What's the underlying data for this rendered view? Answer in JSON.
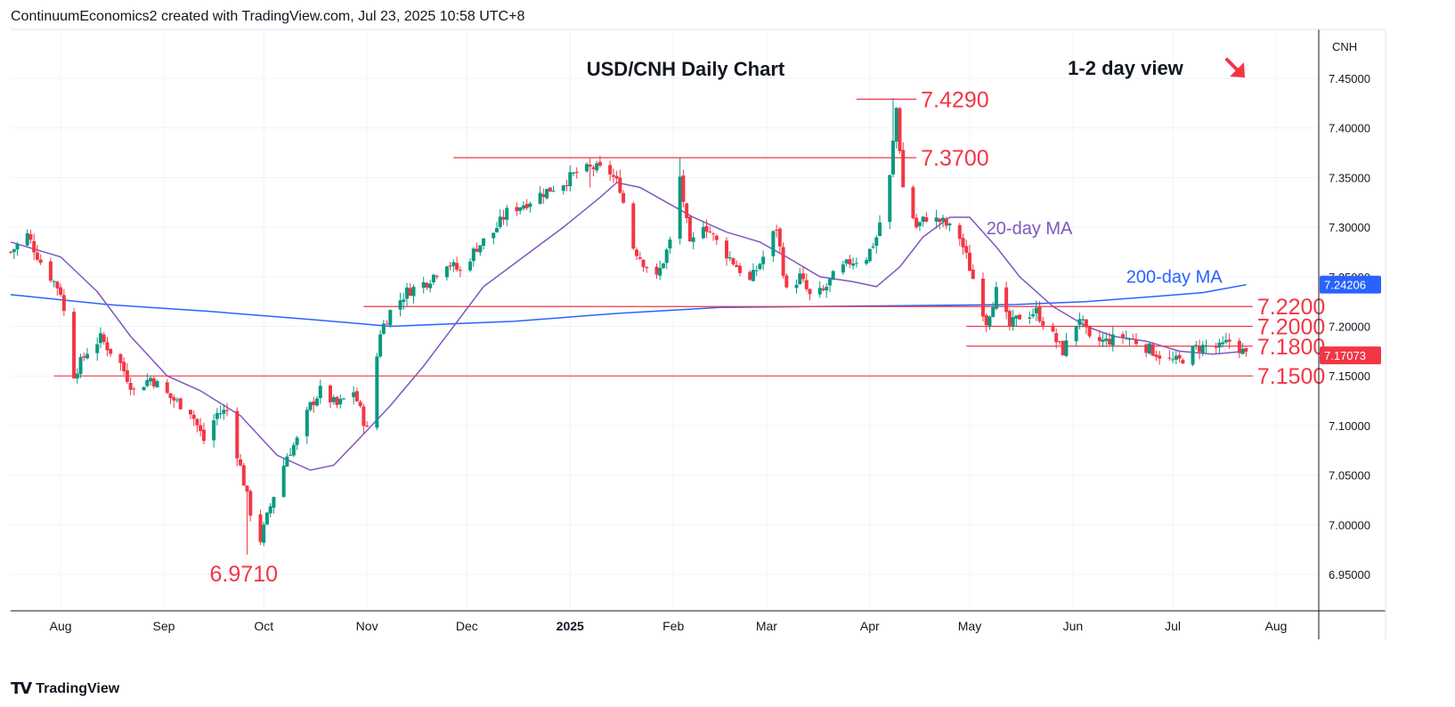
{
  "header": {
    "attribution": "ContinuumEconomics2 created with TradingView.com, Jul 23, 2025 10:58 UTC+8"
  },
  "footer": {
    "logo_text": "TradingView",
    "logo_mark": "TV"
  },
  "colors": {
    "up": "#089981",
    "down": "#f23645",
    "ma20": "#7e57c2",
    "ma200": "#2962ff",
    "level_line": "#f23645",
    "grid": "#f0f3fa",
    "axis": "#131722",
    "price_badge": "#f23645",
    "ma200_badge": "#2962ff"
  },
  "chart_data": {
    "type": "candlestick",
    "title": "USD/CNH Daily Chart",
    "view_label": "1-2 day view",
    "view_icon": "arrow-down-right-icon",
    "symbol": "CNH",
    "ylim": [
      6.9,
      7.48
    ],
    "price_ticks": [
      "7.45000",
      "7.40000",
      "7.35000",
      "7.30000",
      "7.25000",
      "7.20000",
      "7.15000",
      "7.10000",
      "7.05000",
      "7.00000",
      "6.95000"
    ],
    "time_ticks": [
      {
        "label": "Aug",
        "date": "2024-08-01",
        "bold": false
      },
      {
        "label": "Sep",
        "date": "2024-09-01",
        "bold": false
      },
      {
        "label": "Oct",
        "date": "2024-10-01",
        "bold": false
      },
      {
        "label": "Nov",
        "date": "2024-11-01",
        "bold": false
      },
      {
        "label": "Dec",
        "date": "2024-12-01",
        "bold": false
      },
      {
        "label": "2025",
        "date": "2025-01-01",
        "bold": true
      },
      {
        "label": "Feb",
        "date": "2025-02-01",
        "bold": false
      },
      {
        "label": "Mar",
        "date": "2025-03-01",
        "bold": false
      },
      {
        "label": "Apr",
        "date": "2025-04-01",
        "bold": false
      },
      {
        "label": "May",
        "date": "2025-05-01",
        "bold": false
      },
      {
        "label": "Jun",
        "date": "2025-06-01",
        "bold": false
      },
      {
        "label": "Jul",
        "date": "2025-07-01",
        "bold": false
      },
      {
        "label": "Aug",
        "date": "2025-08-01",
        "bold": false
      }
    ],
    "x_range": [
      "2024-07-17",
      "2025-08-28"
    ],
    "last_price": {
      "value": 7.17073,
      "label": "7.17073"
    },
    "ma200_last": {
      "value": 7.24206,
      "label": "7.24206"
    },
    "series_labels": [
      {
        "name": "20-day MA",
        "color_key": "ma20",
        "date": "2025-05-06",
        "price": 7.293
      },
      {
        "name": "200-day MA",
        "color_key": "ma200",
        "date": "2025-06-17",
        "price": 7.244
      }
    ],
    "levels": [
      {
        "label": "7.4290",
        "value": 7.429,
        "from": "2025-03-28",
        "to": "2025-04-15",
        "label_date": "2025-04-15"
      },
      {
        "label": "7.3700",
        "value": 7.37,
        "from": "2024-11-27",
        "to": "2025-04-15",
        "label_date": "2025-04-15"
      },
      {
        "label": "7.2200",
        "value": 7.22,
        "from": "2024-10-31",
        "to": "2025-07-25",
        "label_date": "2025-07-25"
      },
      {
        "label": "7.2000",
        "value": 7.2,
        "from": "2025-04-30",
        "to": "2025-07-25",
        "label_date": "2025-07-25"
      },
      {
        "label": "7.1800",
        "value": 7.18,
        "from": "2025-04-30",
        "to": "2025-07-25",
        "label_date": "2025-07-25"
      },
      {
        "label": "7.1500",
        "value": 7.15,
        "from": "2024-07-30",
        "to": "2025-07-25",
        "label_date": "2025-07-25"
      }
    ],
    "annotations": [
      {
        "label": "6.9710",
        "date": "2024-09-25",
        "price": 6.943
      }
    ],
    "ma20": {
      "points": [
        [
          "2024-07-17",
          7.285
        ],
        [
          "2024-08-01",
          7.27
        ],
        [
          "2024-08-12",
          7.235
        ],
        [
          "2024-08-22",
          7.19
        ],
        [
          "2024-09-02",
          7.15
        ],
        [
          "2024-09-12",
          7.135
        ],
        [
          "2024-09-24",
          7.11
        ],
        [
          "2024-10-05",
          7.07
        ],
        [
          "2024-10-15",
          7.055
        ],
        [
          "2024-10-22",
          7.06
        ],
        [
          "2024-11-01",
          7.095
        ],
        [
          "2024-11-08",
          7.12
        ],
        [
          "2024-11-18",
          7.16
        ],
        [
          "2024-11-27",
          7.2
        ],
        [
          "2024-12-06",
          7.24
        ],
        [
          "2024-12-18",
          7.27
        ],
        [
          "2024-12-30",
          7.3
        ],
        [
          "2025-01-10",
          7.33
        ],
        [
          "2025-01-15",
          7.345
        ],
        [
          "2025-01-22",
          7.34
        ],
        [
          "2025-01-30",
          7.325
        ],
        [
          "2025-02-07",
          7.31
        ],
        [
          "2025-02-17",
          7.295
        ],
        [
          "2025-02-27",
          7.285
        ],
        [
          "2025-03-07",
          7.27
        ],
        [
          "2025-03-17",
          7.25
        ],
        [
          "2025-03-27",
          7.245
        ],
        [
          "2025-04-03",
          7.24
        ],
        [
          "2025-04-10",
          7.26
        ],
        [
          "2025-04-17",
          7.29
        ],
        [
          "2025-04-25",
          7.31
        ],
        [
          "2025-05-01",
          7.31
        ],
        [
          "2025-05-09",
          7.28
        ],
        [
          "2025-05-16",
          7.25
        ],
        [
          "2025-05-26",
          7.22
        ],
        [
          "2025-06-05",
          7.2
        ],
        [
          "2025-06-13",
          7.19
        ],
        [
          "2025-06-23",
          7.185
        ],
        [
          "2025-07-03",
          7.175
        ],
        [
          "2025-07-13",
          7.172
        ],
        [
          "2025-07-23",
          7.175
        ]
      ]
    },
    "ma200": {
      "points": [
        [
          "2024-07-17",
          7.232
        ],
        [
          "2024-08-15",
          7.222
        ],
        [
          "2024-09-15",
          7.215
        ],
        [
          "2024-10-15",
          7.207
        ],
        [
          "2024-11-08",
          7.2
        ],
        [
          "2024-12-15",
          7.205
        ],
        [
          "2025-01-15",
          7.213
        ],
        [
          "2025-02-15",
          7.219
        ],
        [
          "2025-03-15",
          7.22
        ],
        [
          "2025-04-15",
          7.221
        ],
        [
          "2025-05-15",
          7.222
        ],
        [
          "2025-06-05",
          7.225
        ],
        [
          "2025-06-25",
          7.23
        ],
        [
          "2025-07-10",
          7.234
        ],
        [
          "2025-07-23",
          7.242
        ]
      ]
    },
    "anchors": [
      [
        "2024-07-17",
        7.275
      ],
      [
        "2024-07-22",
        7.292
      ],
      [
        "2024-07-26",
        7.265
      ],
      [
        "2024-08-01",
        7.235
      ],
      [
        "2024-08-05",
        7.152
      ],
      [
        "2024-08-09",
        7.175
      ],
      [
        "2024-08-13",
        7.188
      ],
      [
        "2024-08-19",
        7.162
      ],
      [
        "2024-08-23",
        7.135
      ],
      [
        "2024-08-28",
        7.148
      ],
      [
        "2024-09-03",
        7.128
      ],
      [
        "2024-09-09",
        7.115
      ],
      [
        "2024-09-13",
        7.085
      ],
      [
        "2024-09-17",
        7.112
      ],
      [
        "2024-09-20",
        7.115
      ],
      [
        "2024-09-24",
        7.058
      ],
      [
        "2024-09-27",
        7.013
      ],
      [
        "2024-09-30",
        6.985
      ],
      [
        "2024-10-04",
        7.03
      ],
      [
        "2024-10-08",
        7.07
      ],
      [
        "2024-10-11",
        7.085
      ],
      [
        "2024-10-15",
        7.12
      ],
      [
        "2024-10-18",
        7.135
      ],
      [
        "2024-10-23",
        7.12
      ],
      [
        "2024-10-28",
        7.135
      ],
      [
        "2024-11-01",
        7.095
      ],
      [
        "2024-11-05",
        7.195
      ],
      [
        "2024-11-08",
        7.215
      ],
      [
        "2024-11-13",
        7.235
      ],
      [
        "2024-11-19",
        7.245
      ],
      [
        "2024-11-25",
        7.265
      ],
      [
        "2024-11-29",
        7.255
      ],
      [
        "2024-12-04",
        7.28
      ],
      [
        "2024-12-09",
        7.295
      ],
      [
        "2024-12-13",
        7.315
      ],
      [
        "2024-12-19",
        7.325
      ],
      [
        "2024-12-24",
        7.335
      ],
      [
        "2024-12-30",
        7.345
      ],
      [
        "2025-01-03",
        7.355
      ],
      [
        "2025-01-08",
        7.36
      ],
      [
        "2025-01-13",
        7.355
      ],
      [
        "2025-01-16",
        7.34
      ],
      [
        "2025-01-20",
        7.28
      ],
      [
        "2025-01-23",
        7.265
      ],
      [
        "2025-01-27",
        7.248
      ],
      [
        "2025-01-31",
        7.285
      ],
      [
        "2025-02-03",
        7.35
      ],
      [
        "2025-02-06",
        7.28
      ],
      [
        "2025-02-10",
        7.305
      ],
      [
        "2025-02-14",
        7.285
      ],
      [
        "2025-02-19",
        7.265
      ],
      [
        "2025-02-24",
        7.245
      ],
      [
        "2025-02-28",
        7.27
      ],
      [
        "2025-03-04",
        7.3
      ],
      [
        "2025-03-07",
        7.235
      ],
      [
        "2025-03-11",
        7.25
      ],
      [
        "2025-03-14",
        7.23
      ],
      [
        "2025-03-18",
        7.235
      ],
      [
        "2025-03-21",
        7.25
      ],
      [
        "2025-03-26",
        7.265
      ],
      [
        "2025-03-31",
        7.27
      ],
      [
        "2025-04-03",
        7.29
      ],
      [
        "2025-04-07",
        7.35
      ],
      [
        "2025-04-09",
        7.42
      ],
      [
        "2025-04-11",
        7.34
      ],
      [
        "2025-04-15",
        7.3
      ],
      [
        "2025-04-18",
        7.31
      ],
      [
        "2025-04-23",
        7.305
      ],
      [
        "2025-04-28",
        7.29
      ],
      [
        "2025-04-30",
        7.27
      ],
      [
        "2025-05-06",
        7.205
      ],
      [
        "2025-05-09",
        7.235
      ],
      [
        "2025-05-13",
        7.2
      ],
      [
        "2025-05-16",
        7.21
      ],
      [
        "2025-05-21",
        7.215
      ],
      [
        "2025-05-26",
        7.19
      ],
      [
        "2025-05-29",
        7.175
      ],
      [
        "2025-06-03",
        7.21
      ],
      [
        "2025-06-06",
        7.185
      ],
      [
        "2025-06-11",
        7.185
      ],
      [
        "2025-06-16",
        7.19
      ],
      [
        "2025-06-20",
        7.185
      ],
      [
        "2025-06-25",
        7.175
      ],
      [
        "2025-06-30",
        7.165
      ],
      [
        "2025-07-03",
        7.165
      ],
      [
        "2025-07-08",
        7.178
      ],
      [
        "2025-07-11",
        7.18
      ],
      [
        "2025-07-15",
        7.178
      ],
      [
        "2025-07-18",
        7.185
      ],
      [
        "2025-07-21",
        7.178
      ],
      [
        "2025-07-23",
        7.171
      ]
    ]
  }
}
